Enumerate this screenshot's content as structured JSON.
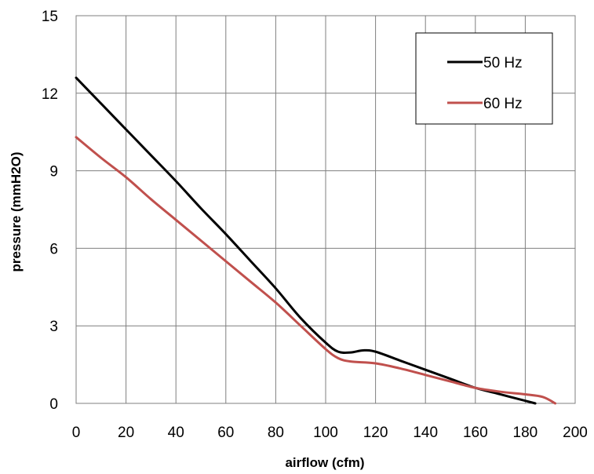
{
  "chart_data": {
    "type": "line",
    "xlabel": "airflow (cfm)",
    "ylabel": "pressure (mmH2O)",
    "xlim": [
      0,
      200
    ],
    "ylim": [
      0,
      15
    ],
    "xticks": [
      0,
      20,
      40,
      60,
      80,
      100,
      120,
      140,
      160,
      180,
      200
    ],
    "yticks": [
      0,
      3,
      6,
      9,
      12,
      15
    ],
    "x_tick_labels": [
      "0",
      "20",
      "40",
      "60",
      "80",
      "100",
      "120",
      "140",
      "160",
      "180",
      "200"
    ],
    "y_tick_labels": [
      "0",
      "3",
      "6",
      "9",
      "12",
      "15"
    ],
    "grid": true,
    "legend_position": "top-right",
    "series": [
      {
        "name": "50 Hz",
        "color": "#000000",
        "points": [
          [
            0,
            12.6
          ],
          [
            10,
            11.6
          ],
          [
            20,
            10.6
          ],
          [
            30,
            9.6
          ],
          [
            40,
            8.6
          ],
          [
            50,
            7.55
          ],
          [
            60,
            6.55
          ],
          [
            70,
            5.5
          ],
          [
            80,
            4.45
          ],
          [
            90,
            3.3
          ],
          [
            100,
            2.35
          ],
          [
            105,
            2.0
          ],
          [
            110,
            1.97
          ],
          [
            115,
            2.05
          ],
          [
            120,
            2.0
          ],
          [
            130,
            1.65
          ],
          [
            140,
            1.3
          ],
          [
            150,
            0.95
          ],
          [
            160,
            0.6
          ],
          [
            170,
            0.35
          ],
          [
            180,
            0.1
          ],
          [
            184,
            0.0
          ]
        ]
      },
      {
        "name": "60 Hz",
        "color": "#c0504d",
        "points": [
          [
            0,
            10.3
          ],
          [
            10,
            9.5
          ],
          [
            20,
            8.75
          ],
          [
            30,
            7.9
          ],
          [
            40,
            7.1
          ],
          [
            50,
            6.3
          ],
          [
            60,
            5.5
          ],
          [
            70,
            4.7
          ],
          [
            80,
            3.9
          ],
          [
            90,
            3.0
          ],
          [
            100,
            2.1
          ],
          [
            105,
            1.75
          ],
          [
            110,
            1.62
          ],
          [
            120,
            1.55
          ],
          [
            130,
            1.35
          ],
          [
            140,
            1.1
          ],
          [
            150,
            0.85
          ],
          [
            160,
            0.6
          ],
          [
            170,
            0.45
          ],
          [
            180,
            0.35
          ],
          [
            187,
            0.25
          ],
          [
            192,
            0.0
          ]
        ]
      }
    ]
  }
}
